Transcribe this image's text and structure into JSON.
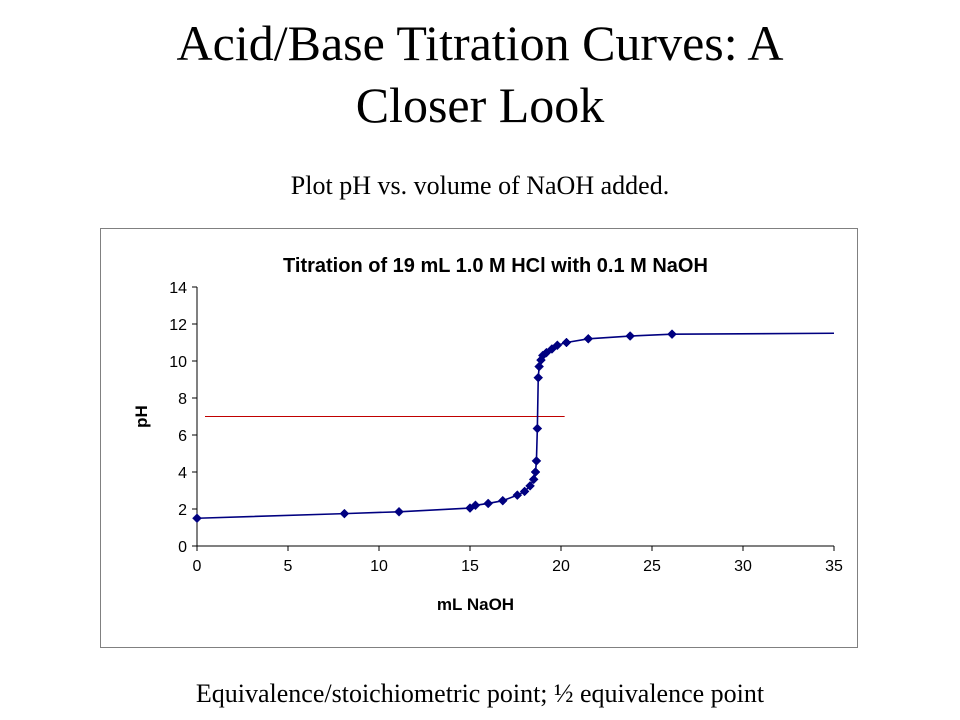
{
  "slide": {
    "title_line1": "Acid/Base Titration Curves:  A",
    "title_line2": "Closer Look",
    "subtitle": "Plot pH vs. volume of  NaOH added.",
    "caption": "Equivalence/stoichiometric point; ½ equivalence point"
  },
  "colors": {
    "series": "#000080",
    "reference_line": "#c00000",
    "axis": "#000000"
  },
  "chart_data": {
    "type": "line",
    "title": "Titration of 19 mL 1.0 M HCl with 0.1 M NaOH",
    "xlabel": "mL NaOH",
    "ylabel": "pH",
    "xlim": [
      0,
      35
    ],
    "ylim": [
      0,
      14
    ],
    "xticks": [
      "0",
      "5",
      "10",
      "15",
      "20",
      "25",
      "30",
      "35"
    ],
    "yticks": [
      "0",
      "2",
      "4",
      "6",
      "8",
      "10",
      "12",
      "14"
    ],
    "grid": false,
    "legend": "none",
    "series": [
      {
        "marker": "diamond",
        "x": [
          0,
          8.1,
          11.1,
          15.0,
          15.3,
          16.0,
          16.8,
          17.6,
          18.0,
          18.3,
          18.5,
          18.6,
          18.65,
          18.7,
          18.75,
          18.8,
          18.9,
          19.0,
          19.2,
          19.5,
          19.8,
          20.3,
          21.5,
          23.8,
          26.1
        ],
        "y": [
          1.5,
          1.75,
          1.85,
          2.05,
          2.2,
          2.3,
          2.45,
          2.75,
          2.95,
          3.25,
          3.6,
          4.0,
          4.6,
          6.35,
          9.1,
          9.7,
          10.05,
          10.3,
          10.45,
          10.65,
          10.85,
          11.0,
          11.2,
          11.35,
          11.45
        ]
      }
    ],
    "curve_end": {
      "x": 35,
      "y": 11.5
    },
    "reference_line": {
      "y": 7.0,
      "x": [
        0,
        20.2
      ]
    }
  }
}
